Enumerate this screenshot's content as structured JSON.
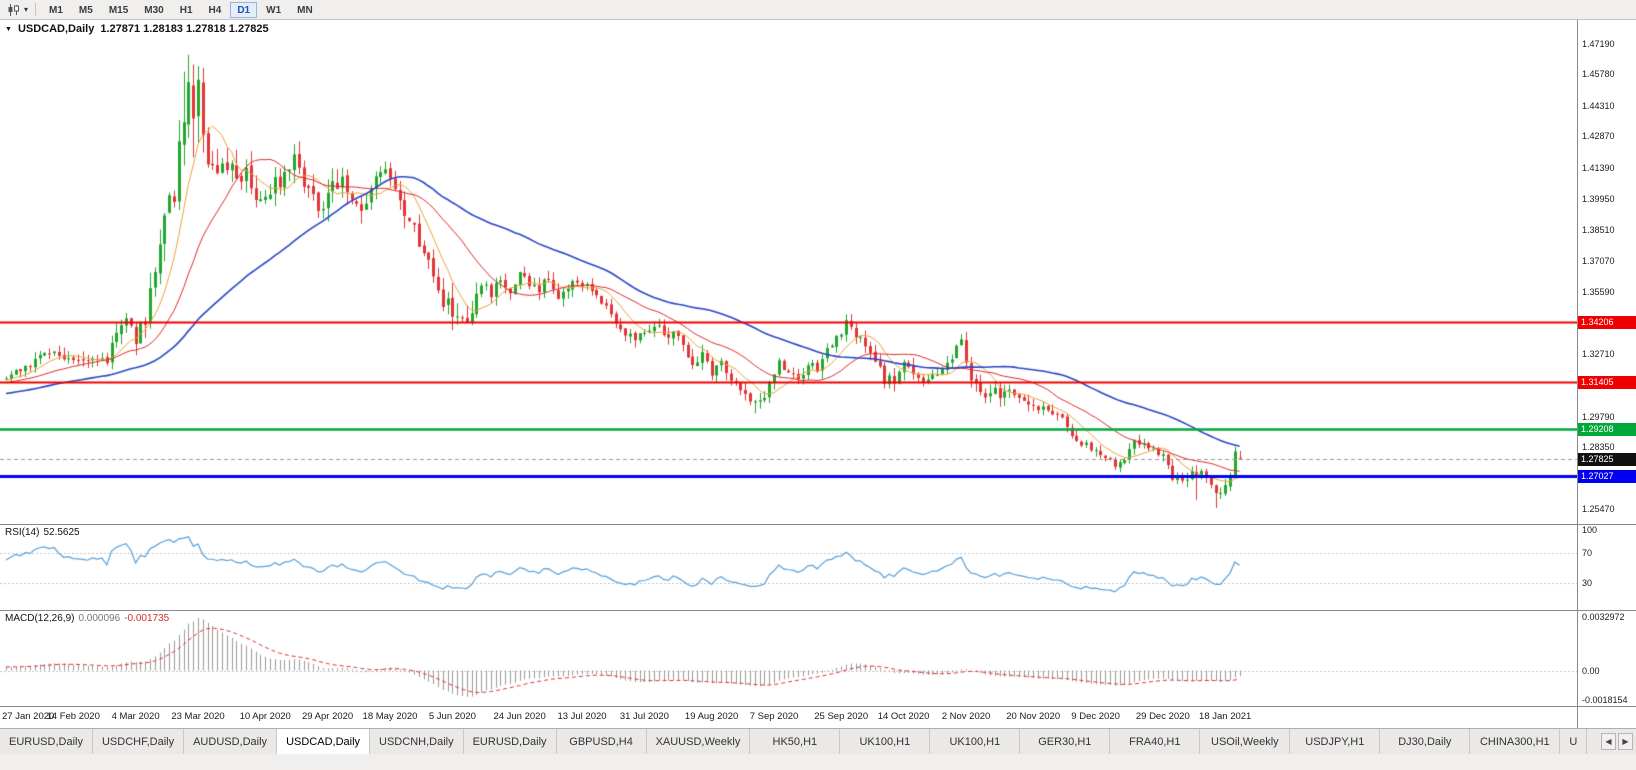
{
  "toolbar": {
    "timeframes": [
      {
        "label": "M1",
        "active": false
      },
      {
        "label": "M5",
        "active": false
      },
      {
        "label": "M15",
        "active": false
      },
      {
        "label": "M30",
        "active": false
      },
      {
        "label": "H1",
        "active": false
      },
      {
        "label": "H4",
        "active": false
      },
      {
        "label": "D1",
        "active": true
      },
      {
        "label": "W1",
        "active": false
      },
      {
        "label": "MN",
        "active": false
      }
    ]
  },
  "chart": {
    "symbol_period": "USDCAD,Daily",
    "ohlc_text": "1.27871 1.28183 1.27818 1.27825",
    "collapse_glyph": "▼"
  },
  "chart_data": {
    "type": "candlestick",
    "symbol": "USDCAD",
    "timeframe": "Daily",
    "ohlc_display": {
      "open": "1.27871",
      "high": "1.28183",
      "low": "1.27818",
      "close": "1.27825"
    },
    "bar_count": 258,
    "pre_bars": 60,
    "seed": 42,
    "x0": 6,
    "bar_spacing": 4.8,
    "y_min": 1.2477,
    "y_max": 1.4831,
    "y_ticks": [
      "1.47190",
      "1.45780",
      "1.44310",
      "1.42870",
      "1.41390",
      "1.39950",
      "1.38510",
      "1.37070",
      "1.35590",
      "1.32710",
      "1.29790",
      "1.28350",
      "1.25470"
    ],
    "x_labels": [
      {
        "text": "27 Jan 2020",
        "bar": 0
      },
      {
        "text": "14 Feb 2020",
        "bar": 14
      },
      {
        "text": "4 Mar 2020",
        "bar": 27
      },
      {
        "text": "23 Mar 2020",
        "bar": 40
      },
      {
        "text": "10 Apr 2020",
        "bar": 54
      },
      {
        "text": "29 Apr 2020",
        "bar": 67
      },
      {
        "text": "18 May 2020",
        "bar": 80
      },
      {
        "text": "5 Jun 2020",
        "bar": 93
      },
      {
        "text": "24 Jun 2020",
        "bar": 107
      },
      {
        "text": "13 Jul 2020",
        "bar": 120
      },
      {
        "text": "31 Jul 2020",
        "bar": 133
      },
      {
        "text": "19 Aug 2020",
        "bar": 147
      },
      {
        "text": "7 Sep 2020",
        "bar": 160
      },
      {
        "text": "25 Sep 2020",
        "bar": 174
      },
      {
        "text": "14 Oct 2020",
        "bar": 187
      },
      {
        "text": "2 Nov 2020",
        "bar": 200
      },
      {
        "text": "20 Nov 2020",
        "bar": 214
      },
      {
        "text": "9 Dec 2020",
        "bar": 227
      },
      {
        "text": "29 Dec 2020",
        "bar": 241
      },
      {
        "text": "18 Jan 2021",
        "bar": 254
      }
    ],
    "colors": {
      "up": "#23a62f",
      "down": "#e23636",
      "ma_fast": "#eba23a",
      "ma_mid": "#dd2a2a",
      "ma_slow": "#2847c8",
      "rsi": "#58a0d8",
      "macd_hist": "#9a9a9a",
      "macd_signal": "#e03030"
    },
    "moving_averages": [
      {
        "name": "MA-fast",
        "period": 8,
        "color": "#eba23a",
        "width": 1
      },
      {
        "name": "MA-mid",
        "period": 20,
        "color": "#dd2a2a",
        "width": 1
      },
      {
        "name": "MA-slow",
        "period": 50,
        "color": "#2847c8",
        "width": 1.6
      }
    ],
    "h_lines": [
      {
        "price": 1.34206,
        "label": "1.34206",
        "color": "#ee0000",
        "width": 2
      },
      {
        "price": 1.31405,
        "label": "1.31405",
        "color": "#ee0000",
        "width": 2
      },
      {
        "price": 1.29208,
        "label": "1.29208",
        "color": "#00a83a",
        "width": 2.5
      },
      {
        "price": 1.27027,
        "label": "1.27027",
        "color": "#0000ee",
        "width": 3
      }
    ],
    "current_price": {
      "value": 1.27825,
      "label": "1.27825",
      "tag_color": "#111111"
    },
    "indicators": {
      "rsi": {
        "label": "RSI(14)",
        "value": "52.5625",
        "period": 14,
        "scale_labels": [
          "100",
          "70",
          "30"
        ],
        "levels": [
          70,
          30
        ],
        "color": "#58a0d8"
      },
      "macd": {
        "label": "MACD(12,26,9)",
        "value_main": "0.000096",
        "value_signal": "-0.001735",
        "fast": 12,
        "slow": 26,
        "signal": 9,
        "scale": [
          "0.0032972",
          "0.00",
          "-0.0018154"
        ]
      }
    },
    "anchors": [
      [
        -60,
        1.297
      ],
      [
        -35,
        1.305
      ],
      [
        -15,
        1.312
      ],
      [
        0,
        1.316
      ],
      [
        3,
        1.3205
      ],
      [
        6,
        1.3245
      ],
      [
        9,
        1.329
      ],
      [
        12,
        1.326
      ],
      [
        15,
        1.323
      ],
      [
        18,
        1.3255
      ],
      [
        21,
        1.324
      ],
      [
        23,
        1.339
      ],
      [
        25,
        1.3425
      ],
      [
        27,
        1.335
      ],
      [
        29,
        1.343
      ],
      [
        31,
        1.37
      ],
      [
        33,
        1.392
      ],
      [
        35,
        1.405
      ],
      [
        37,
        1.433
      ],
      [
        38,
        1.456
      ],
      [
        39,
        1.443
      ],
      [
        40,
        1.449
      ],
      [
        42,
        1.42
      ],
      [
        44,
        1.406
      ],
      [
        46,
        1.415
      ],
      [
        48,
        1.409
      ],
      [
        50,
        1.414
      ],
      [
        52,
        1.402
      ],
      [
        54,
        1.397
      ],
      [
        56,
        1.406
      ],
      [
        58,
        1.412
      ],
      [
        60,
        1.423
      ],
      [
        62,
        1.409
      ],
      [
        64,
        1.401
      ],
      [
        66,
        1.395
      ],
      [
        68,
        1.404
      ],
      [
        70,
        1.41
      ],
      [
        72,
        1.398
      ],
      [
        74,
        1.393
      ],
      [
        76,
        1.403
      ],
      [
        78,
        1.411
      ],
      [
        80,
        1.408
      ],
      [
        82,
        1.395
      ],
      [
        84,
        1.387
      ],
      [
        86,
        1.381
      ],
      [
        88,
        1.369
      ],
      [
        90,
        1.356
      ],
      [
        92,
        1.349
      ],
      [
        94,
        1.343
      ],
      [
        96,
        1.338
      ],
      [
        97,
        1.345
      ],
      [
        99,
        1.359
      ],
      [
        101,
        1.3545
      ],
      [
        103,
        1.361
      ],
      [
        105,
        1.356
      ],
      [
        107,
        1.3645
      ],
      [
        109,
        1.36
      ],
      [
        111,
        1.3575
      ],
      [
        113,
        1.3615
      ],
      [
        115,
        1.3545
      ],
      [
        117,
        1.3575
      ],
      [
        119,
        1.361
      ],
      [
        121,
        1.358
      ],
      [
        123,
        1.355
      ],
      [
        125,
        1.3505
      ],
      [
        127,
        1.342
      ],
      [
        129,
        1.3375
      ],
      [
        131,
        1.335
      ],
      [
        133,
        1.339
      ],
      [
        135,
        1.3415
      ],
      [
        137,
        1.335
      ],
      [
        139,
        1.339
      ],
      [
        141,
        1.3305
      ],
      [
        143,
        1.323
      ],
      [
        145,
        1.326
      ],
      [
        147,
        1.319
      ],
      [
        149,
        1.323
      ],
      [
        151,
        1.316
      ],
      [
        153,
        1.3105
      ],
      [
        155,
        1.305
      ],
      [
        157,
        1.3035
      ],
      [
        159,
        1.3135
      ],
      [
        161,
        1.323
      ],
      [
        163,
        1.3175
      ],
      [
        165,
        1.3155
      ],
      [
        167,
        1.321
      ],
      [
        169,
        1.32
      ],
      [
        171,
        1.328
      ],
      [
        173,
        1.335
      ],
      [
        175,
        1.3405
      ],
      [
        177,
        1.336
      ],
      [
        179,
        1.33
      ],
      [
        181,
        1.324
      ],
      [
        183,
        1.315
      ],
      [
        185,
        1.3155
      ],
      [
        187,
        1.3215
      ],
      [
        189,
        1.319
      ],
      [
        191,
        1.314
      ],
      [
        193,
        1.3165
      ],
      [
        195,
        1.32
      ],
      [
        197,
        1.326
      ],
      [
        199,
        1.332
      ],
      [
        201,
        1.317
      ],
      [
        203,
        1.307
      ],
      [
        205,
        1.31
      ],
      [
        207,
        1.3075
      ],
      [
        209,
        1.309
      ],
      [
        211,
        1.308
      ],
      [
        213,
        1.305
      ],
      [
        215,
        1.302
      ],
      [
        217,
        1.3
      ],
      [
        219,
        1.2985
      ],
      [
        221,
        1.293
      ],
      [
        223,
        1.288
      ],
      [
        225,
        1.284
      ],
      [
        227,
        1.2815
      ],
      [
        229,
        1.278
      ],
      [
        231,
        1.2745
      ],
      [
        233,
        1.279
      ],
      [
        235,
        1.287
      ],
      [
        237,
        1.285
      ],
      [
        239,
        1.283
      ],
      [
        241,
        1.279
      ],
      [
        243,
        1.27
      ],
      [
        245,
        1.268
      ],
      [
        247,
        1.2712
      ],
      [
        249,
        1.2725
      ],
      [
        251,
        1.2645
      ],
      [
        252,
        1.2605
      ],
      [
        253,
        1.2625
      ],
      [
        254,
        1.2655
      ],
      [
        255,
        1.269
      ],
      [
        256,
        1.2815
      ],
      [
        257,
        1.27825
      ]
    ],
    "volatility": [
      [
        -60,
        0.004
      ],
      [
        0,
        0.0045
      ],
      [
        20,
        0.0055
      ],
      [
        28,
        0.0095
      ],
      [
        34,
        0.016
      ],
      [
        40,
        0.0185
      ],
      [
        46,
        0.0125
      ],
      [
        60,
        0.0095
      ],
      [
        78,
        0.0085
      ],
      [
        92,
        0.0105
      ],
      [
        100,
        0.007
      ],
      [
        115,
        0.0055
      ],
      [
        135,
        0.005
      ],
      [
        155,
        0.0052
      ],
      [
        175,
        0.0055
      ],
      [
        195,
        0.0055
      ],
      [
        200,
        0.0068
      ],
      [
        215,
        0.0045
      ],
      [
        232,
        0.0042
      ],
      [
        246,
        0.005
      ],
      [
        257,
        0.004
      ]
    ],
    "overrides": [
      {
        "i": 37,
        "h": 1.459
      },
      {
        "i": 38,
        "h": 1.4668,
        "l": 1.428
      },
      {
        "i": 39,
        "l": 1.419
      },
      {
        "i": 156,
        "l": 1.2994
      },
      {
        "i": 248,
        "l": 1.259
      },
      {
        "i": 252,
        "l": 1.2552
      },
      {
        "i": 255,
        "o": 1.2652,
        "c": 1.27,
        "l": 1.263,
        "h": 1.2718
      },
      {
        "i": 256,
        "o": 1.2702,
        "c": 1.2816,
        "l": 1.269,
        "h": 1.2838
      },
      {
        "i": 257,
        "o": 1.27871,
        "h": 1.28183,
        "l": 1.27818,
        "c": 1.27825
      }
    ]
  },
  "tabbar": {
    "tabs": [
      {
        "label": "EURUSD,Daily",
        "active": false
      },
      {
        "label": "USDCHF,Daily",
        "active": false
      },
      {
        "label": "AUDUSD,Daily",
        "active": false
      },
      {
        "label": "USDCAD,Daily",
        "active": true
      },
      {
        "label": "USDCNH,Daily",
        "active": false
      },
      {
        "label": "EURUSD,Daily",
        "active": false
      },
      {
        "label": "GBPUSD,H4",
        "active": false
      },
      {
        "label": "XAUUSD,Weekly",
        "active": false
      },
      {
        "label": "HK50,H1",
        "active": false
      },
      {
        "label": "UK100,H1",
        "active": false
      },
      {
        "label": "UK100,H1",
        "active": false
      },
      {
        "label": "GER30,H1",
        "active": false
      },
      {
        "label": "FRA40,H1",
        "active": false
      },
      {
        "label": "USOil,Weekly",
        "active": false
      },
      {
        "label": "USDJPY,H1",
        "active": false
      },
      {
        "label": "DJ30,Daily",
        "active": false
      },
      {
        "label": "CHINA300,H1",
        "active": false
      },
      {
        "label": "U",
        "active": false
      }
    ],
    "scroll_left_glyph": "◀",
    "scroll_right_glyph": "▶"
  }
}
